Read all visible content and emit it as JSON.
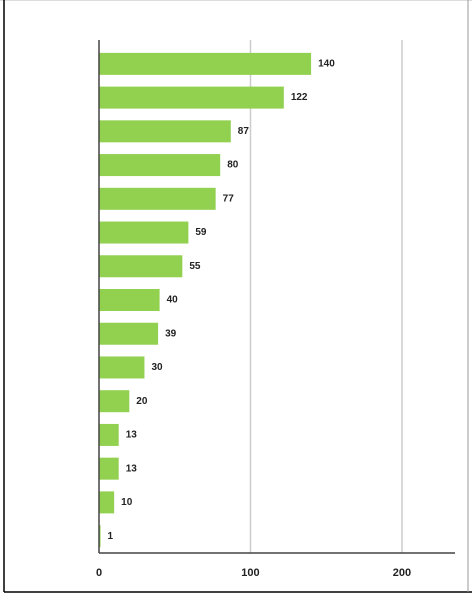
{
  "chart_data": {
    "type": "bar",
    "orientation": "horizontal",
    "categories": [
      null,
      null,
      null,
      null,
      null,
      null,
      null,
      null,
      null,
      null,
      null,
      null,
      null,
      null,
      null
    ],
    "values": [
      140,
      122,
      87,
      80,
      77,
      59,
      55,
      40,
      39,
      30,
      20,
      13,
      13,
      10,
      1
    ],
    "color": "#92d050",
    "xlim": [
      0,
      235
    ],
    "xticks": [
      0,
      100,
      200
    ],
    "grid": true,
    "data_labels": true
  }
}
